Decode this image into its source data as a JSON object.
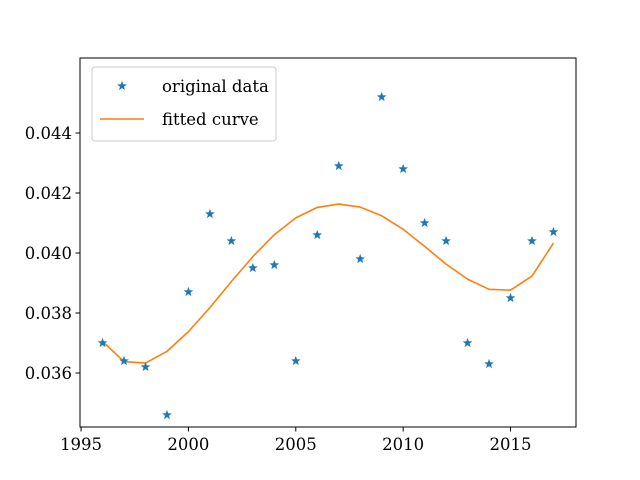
{
  "chart_data": {
    "type": "scatter",
    "title": "",
    "xlabel": "",
    "ylabel": "",
    "xlim": [
      1994.95,
      2018.05
    ],
    "ylim": [
      0.0342,
      0.0465
    ],
    "x_ticks": [
      1995,
      2000,
      2005,
      2010,
      2015
    ],
    "x_tick_labels": [
      "1995",
      "2000",
      "2005",
      "2010",
      "2015"
    ],
    "y_ticks": [
      0.036,
      0.038,
      0.04,
      0.042,
      0.044
    ],
    "y_tick_labels": [
      "0.036",
      "0.038",
      "0.040",
      "0.042",
      "0.044"
    ],
    "grid": false,
    "legend_position": "upper-left",
    "series": [
      {
        "name": "original data",
        "kind": "scatter",
        "marker": "star",
        "color": "#1f77b4",
        "x": [
          1996,
          1997,
          1998,
          1999,
          2000,
          2001,
          2002,
          2003,
          2004,
          2005,
          2006,
          2007,
          2008,
          2009,
          2010,
          2011,
          2012,
          2013,
          2014,
          2015,
          2016,
          2017
        ],
        "y": [
          0.037,
          0.0364,
          0.0362,
          0.0346,
          0.0387,
          0.0413,
          0.0404,
          0.0395,
          0.0396,
          0.0364,
          0.0406,
          0.0429,
          0.0398,
          0.0452,
          0.0428,
          0.041,
          0.0404,
          0.037,
          0.0363,
          0.0385,
          0.0404,
          0.0407
        ]
      },
      {
        "name": "fitted curve",
        "kind": "line",
        "color": "#ff7f0e",
        "x": [
          1996,
          1997,
          1998,
          1999,
          2000,
          2001,
          2002,
          2003,
          2004,
          2005,
          2006,
          2007,
          2008,
          2009,
          2010,
          2011,
          2012,
          2013,
          2014,
          2015,
          2016,
          2017
        ],
        "y": [
          0.03705,
          0.03638,
          0.03633,
          0.03672,
          0.03738,
          0.03818,
          0.03905,
          0.03988,
          0.04061,
          0.04117,
          0.04152,
          0.04163,
          0.04153,
          0.04124,
          0.04079,
          0.04022,
          0.03963,
          0.03913,
          0.03879,
          0.03876,
          0.03923,
          0.04033
        ]
      }
    ]
  }
}
